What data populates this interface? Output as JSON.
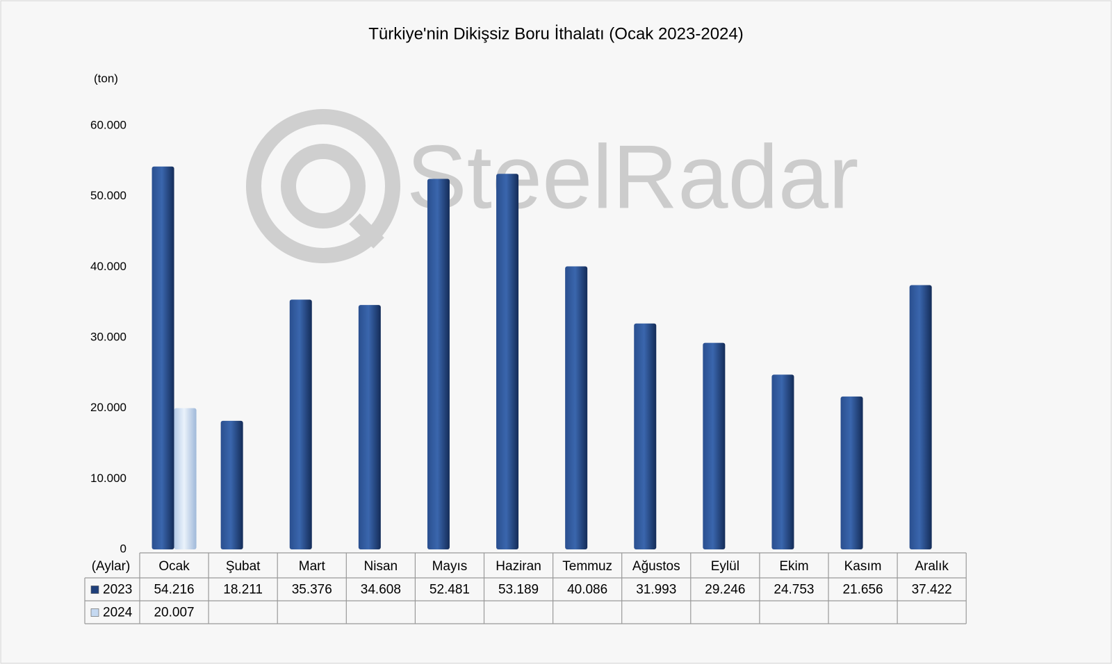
{
  "chart_data": {
    "type": "bar",
    "title": "Türkiye'nin Dikişsiz Boru İthalatı (Ocak 2023-2024)",
    "y_axis_label": "(ton)",
    "table_header": "(Aylar)",
    "watermark": "SteelRadar",
    "categories": [
      "Ocak",
      "Şubat",
      "Mart",
      "Nisan",
      "Mayıs",
      "Haziran",
      "Temmuz",
      "Ağustos",
      "Eylül",
      "Ekim",
      "Kasım",
      "Aralık"
    ],
    "series": [
      {
        "name": "2023",
        "color": "#1f3f7a",
        "values": [
          54216,
          18211,
          35376,
          34608,
          52481,
          53189,
          40086,
          31993,
          29246,
          24753,
          21656,
          37422
        ],
        "value_labels": [
          "54.216",
          "18.211",
          "35.376",
          "34.608",
          "52.481",
          "53.189",
          "40.086",
          "31.993",
          "29.246",
          "24.753",
          "21.656",
          "37.422"
        ]
      },
      {
        "name": "2024",
        "color": "#c5d9f1",
        "values": [
          20007,
          null,
          null,
          null,
          null,
          null,
          null,
          null,
          null,
          null,
          null,
          null
        ],
        "value_labels": [
          "20.007",
          null,
          null,
          null,
          null,
          null,
          null,
          null,
          null,
          null,
          null,
          null
        ]
      }
    ],
    "ylim": [
      0,
      60000
    ],
    "yticks": [
      0,
      {
        "value": 10000,
        "label": "10.000"
      },
      {
        "value": 20000,
        "label": "20.000"
      },
      {
        "value": 30000,
        "label": "30.000"
      },
      {
        "value": 40000,
        "label": "40.000"
      },
      {
        "value": 50000,
        "label": "50.000"
      },
      {
        "value": 60000,
        "label": "60.000"
      }
    ],
    "grid": false
  }
}
